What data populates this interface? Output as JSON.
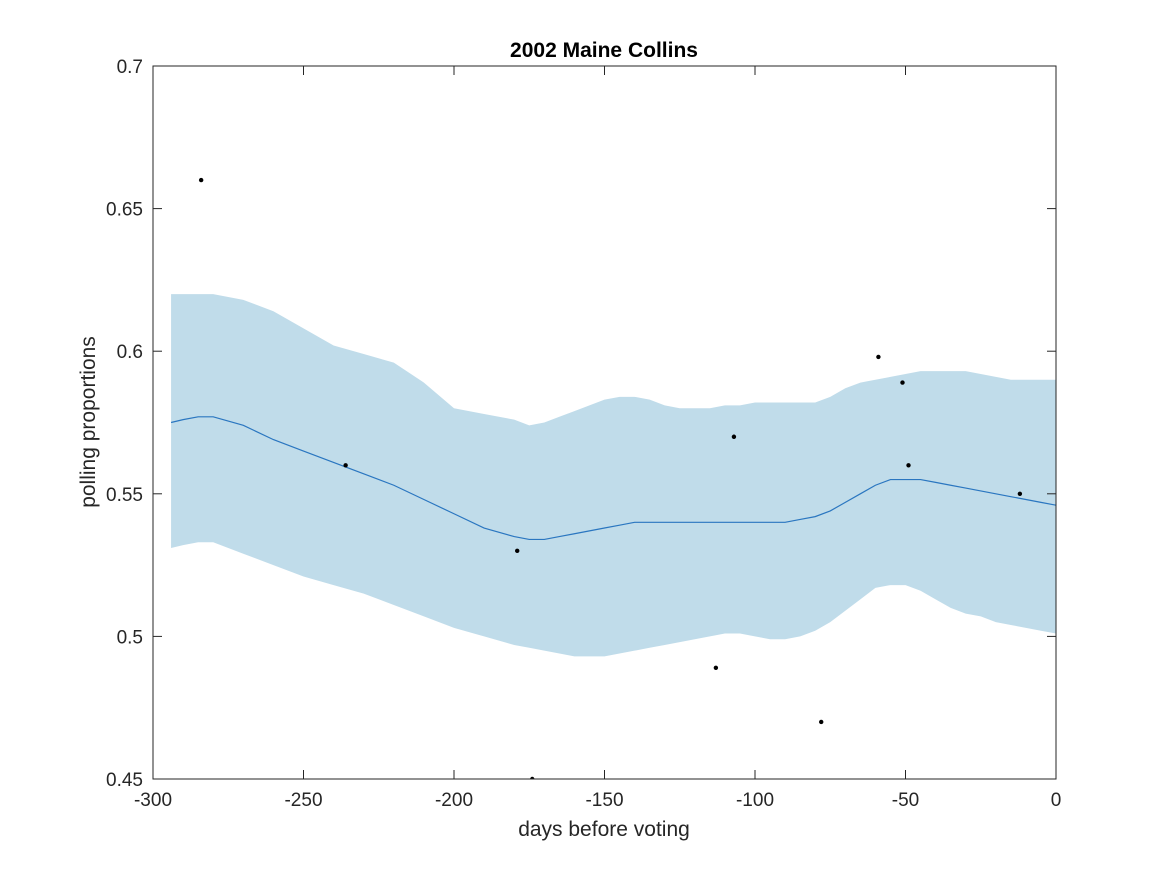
{
  "chart_data": {
    "type": "line",
    "title": "2002 Maine Collins",
    "xlabel": "days before voting",
    "ylabel": "polling proportions",
    "xlim": [
      -300,
      0
    ],
    "ylim": [
      0.45,
      0.7
    ],
    "xticks": [
      -300,
      -250,
      -200,
      -150,
      -100,
      -50,
      0
    ],
    "xtick_labels": [
      "-300",
      "-250",
      "-200",
      "-150",
      "-100",
      "-50",
      "0"
    ],
    "yticks": [
      0.45,
      0.5,
      0.55,
      0.6,
      0.65,
      0.7
    ],
    "ytick_labels": [
      "0.45",
      "0.5",
      "0.55",
      "0.6",
      "0.65",
      "0.7"
    ],
    "grid": false,
    "colors": {
      "band": "#c0dcea",
      "line": "#2a76c0",
      "points": "#000000",
      "axes": "#262626"
    },
    "series": [
      {
        "kind": "band",
        "x": [
          -294,
          -290,
          -285,
          -280,
          -270,
          -260,
          -250,
          -240,
          -230,
          -220,
          -210,
          -200,
          -190,
          -180,
          -175,
          -170,
          -165,
          -160,
          -155,
          -150,
          -145,
          -140,
          -135,
          -130,
          -125,
          -120,
          -115,
          -110,
          -105,
          -100,
          -95,
          -90,
          -85,
          -80,
          -75,
          -70,
          -65,
          -60,
          -55,
          -50,
          -45,
          -40,
          -35,
          -30,
          -25,
          -20,
          -15,
          -10,
          -5,
          0
        ],
        "upper": [
          0.62,
          0.62,
          0.62,
          0.62,
          0.618,
          0.614,
          0.608,
          0.602,
          0.599,
          0.596,
          0.589,
          0.58,
          0.578,
          0.576,
          0.574,
          0.575,
          0.577,
          0.579,
          0.581,
          0.583,
          0.584,
          0.584,
          0.583,
          0.581,
          0.58,
          0.58,
          0.58,
          0.581,
          0.581,
          0.582,
          0.582,
          0.582,
          0.582,
          0.582,
          0.584,
          0.587,
          0.589,
          0.59,
          0.591,
          0.592,
          0.593,
          0.593,
          0.593,
          0.593,
          0.592,
          0.591,
          0.59,
          0.59,
          0.59,
          0.59
        ],
        "lower": [
          0.531,
          0.532,
          0.533,
          0.533,
          0.529,
          0.525,
          0.521,
          0.518,
          0.515,
          0.511,
          0.507,
          0.503,
          0.5,
          0.497,
          0.496,
          0.495,
          0.494,
          0.493,
          0.493,
          0.493,
          0.494,
          0.495,
          0.496,
          0.497,
          0.498,
          0.499,
          0.5,
          0.501,
          0.501,
          0.5,
          0.499,
          0.499,
          0.5,
          0.502,
          0.505,
          0.509,
          0.513,
          0.517,
          0.518,
          0.518,
          0.516,
          0.513,
          0.51,
          0.508,
          0.507,
          0.505,
          0.504,
          0.503,
          0.502,
          0.501
        ]
      },
      {
        "kind": "line",
        "x": [
          -294,
          -290,
          -285,
          -280,
          -270,
          -260,
          -250,
          -240,
          -230,
          -220,
          -210,
          -200,
          -190,
          -180,
          -175,
          -170,
          -165,
          -160,
          -155,
          -150,
          -145,
          -140,
          -135,
          -130,
          -125,
          -120,
          -115,
          -110,
          -105,
          -100,
          -95,
          -90,
          -85,
          -80,
          -75,
          -70,
          -65,
          -60,
          -55,
          -50,
          -45,
          -40,
          -35,
          -30,
          -25,
          -20,
          -15,
          -10,
          -5,
          0
        ],
        "y": [
          0.575,
          0.576,
          0.577,
          0.577,
          0.574,
          0.569,
          0.565,
          0.561,
          0.557,
          0.553,
          0.548,
          0.543,
          0.538,
          0.535,
          0.534,
          0.534,
          0.535,
          0.536,
          0.537,
          0.538,
          0.539,
          0.54,
          0.54,
          0.54,
          0.54,
          0.54,
          0.54,
          0.54,
          0.54,
          0.54,
          0.54,
          0.54,
          0.541,
          0.542,
          0.544,
          0.547,
          0.55,
          0.553,
          0.555,
          0.555,
          0.555,
          0.554,
          0.553,
          0.552,
          0.551,
          0.55,
          0.549,
          0.548,
          0.547,
          0.546
        ]
      },
      {
        "kind": "points",
        "x": [
          -284,
          -236,
          -179,
          -174,
          -113,
          -107,
          -78,
          -59,
          -51,
          -49,
          -12
        ],
        "y": [
          0.66,
          0.56,
          0.53,
          0.45,
          0.489,
          0.57,
          0.47,
          0.598,
          0.589,
          0.56,
          0.55
        ]
      }
    ]
  }
}
